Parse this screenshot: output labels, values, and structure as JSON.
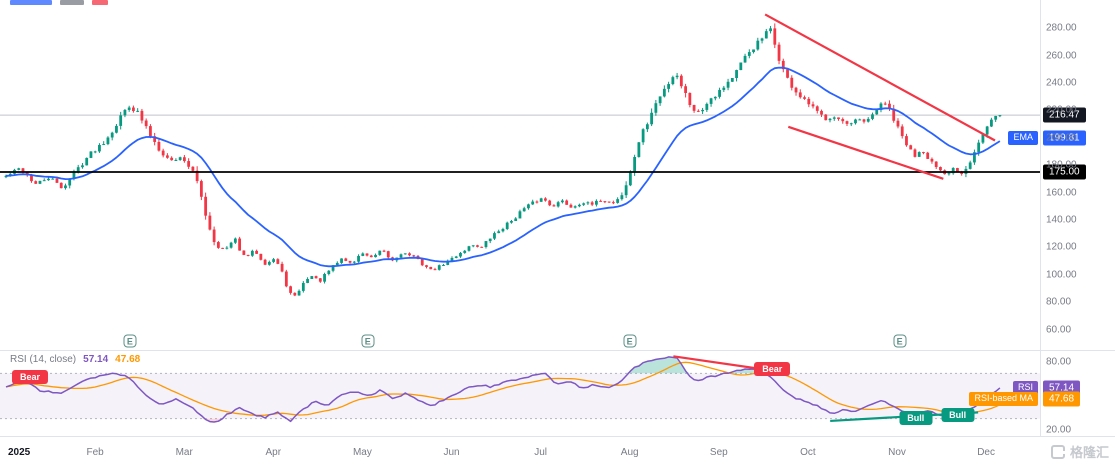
{
  "price_axis": {
    "ticks": [
      280,
      260,
      240,
      220,
      200,
      180,
      160,
      140,
      120,
      100,
      80,
      60
    ],
    "last_price_label": "216.47",
    "ema_tag": "EMA",
    "ema_label": "199.81",
    "hline_label": "175.00"
  },
  "rsi_axis": {
    "ticks": [
      80,
      20
    ],
    "rsi_tag": "RSI",
    "rsi_value_label": "57.14",
    "ma_tag": "RSI-based MA",
    "ma_value_label": "47.68"
  },
  "rsi_legend": {
    "title": "RSI (14, close)",
    "rsi_value": "57.14",
    "ma_value": "47.68"
  },
  "time_axis": {
    "year": "2025",
    "months": [
      "Feb",
      "Mar",
      "Apr",
      "May",
      "Jun",
      "Jul",
      "Aug",
      "Sep",
      "Oct",
      "Nov",
      "Dec"
    ]
  },
  "markers": {
    "earnings_label": "E"
  },
  "watermark": "格隆汇",
  "chart_data": {
    "type": "candlestick",
    "x_unit": "months_from_2025-01-01",
    "x_range": [
      0,
      11.155
    ],
    "colors": {
      "up": "#089981",
      "down": "#F23645",
      "ema": "#2962FF",
      "rsi": "#7E57C2",
      "rsi_ma": "#FF9800",
      "trend_bear": "#F23645",
      "trend_bull": "#089981",
      "hline": "#000000",
      "last_badge_bg": "#131722",
      "band_fill": "#7E57C2",
      "axis_text": "#787B86",
      "grid": "#E0E3EB"
    },
    "price_pane": {
      "ylim_approx": [
        52,
        300
      ],
      "last_close": 216.47,
      "ema_period": 21,
      "ema_last": 199.81,
      "hline": 175.0,
      "keyframes": [
        [
          0,
          172
        ],
        [
          0.16,
          178
        ],
        [
          0.33,
          166
        ],
        [
          0.49,
          171
        ],
        [
          0.63,
          163
        ],
        [
          0.77,
          175
        ],
        [
          0.94,
          188
        ],
        [
          1.11,
          198
        ],
        [
          1.26,
          212
        ],
        [
          1.37,
          224
        ],
        [
          1.48,
          218
        ],
        [
          1.59,
          205
        ],
        [
          1.71,
          193
        ],
        [
          1.84,
          183
        ],
        [
          1.98,
          186
        ],
        [
          2.09,
          176
        ],
        [
          2.18,
          160
        ],
        [
          2.27,
          138
        ],
        [
          2.35,
          122
        ],
        [
          2.46,
          118
        ],
        [
          2.57,
          126
        ],
        [
          2.68,
          112
        ],
        [
          2.79,
          118
        ],
        [
          2.91,
          108
        ],
        [
          3.02,
          112
        ],
        [
          3.13,
          96
        ],
        [
          3.22,
          82
        ],
        [
          3.3,
          90
        ],
        [
          3.41,
          100
        ],
        [
          3.52,
          95
        ],
        [
          3.64,
          104
        ],
        [
          3.77,
          112
        ],
        [
          3.88,
          108
        ],
        [
          4.0,
          116
        ],
        [
          4.11,
          112
        ],
        [
          4.22,
          118
        ],
        [
          4.33,
          110
        ],
        [
          4.44,
          116
        ],
        [
          4.56,
          114
        ],
        [
          4.67,
          108
        ],
        [
          4.78,
          103
        ],
        [
          4.89,
          107
        ],
        [
          5.01,
          112
        ],
        [
          5.12,
          117
        ],
        [
          5.23,
          122
        ],
        [
          5.34,
          120
        ],
        [
          5.45,
          128
        ],
        [
          5.57,
          134
        ],
        [
          5.68,
          140
        ],
        [
          5.79,
          147
        ],
        [
          5.9,
          152
        ],
        [
          6.02,
          156
        ],
        [
          6.13,
          150
        ],
        [
          6.24,
          154
        ],
        [
          6.35,
          149
        ],
        [
          6.46,
          153
        ],
        [
          6.58,
          151
        ],
        [
          6.69,
          155
        ],
        [
          6.8,
          152
        ],
        [
          6.91,
          158
        ],
        [
          7.0,
          172
        ],
        [
          7.09,
          196
        ],
        [
          7.18,
          208
        ],
        [
          7.27,
          222
        ],
        [
          7.36,
          232
        ],
        [
          7.45,
          242
        ],
        [
          7.52,
          248
        ],
        [
          7.61,
          234
        ],
        [
          7.7,
          222
        ],
        [
          7.79,
          218
        ],
        [
          7.88,
          228
        ],
        [
          7.97,
          232
        ],
        [
          8.06,
          238
        ],
        [
          8.15,
          244
        ],
        [
          8.24,
          252
        ],
        [
          8.33,
          262
        ],
        [
          8.42,
          268
        ],
        [
          8.51,
          274
        ],
        [
          8.57,
          280
        ],
        [
          8.66,
          262
        ],
        [
          8.75,
          244
        ],
        [
          8.84,
          236
        ],
        [
          8.93,
          228
        ],
        [
          9.02,
          224
        ],
        [
          9.11,
          218
        ],
        [
          9.2,
          214
        ],
        [
          9.29,
          216
        ],
        [
          9.38,
          212
        ],
        [
          9.47,
          208
        ],
        [
          9.56,
          214
        ],
        [
          9.65,
          210
        ],
        [
          9.74,
          218
        ],
        [
          9.83,
          226
        ],
        [
          9.92,
          220
        ],
        [
          10.01,
          206
        ],
        [
          10.1,
          196
        ],
        [
          10.19,
          186
        ],
        [
          10.28,
          192
        ],
        [
          10.37,
          184
        ],
        [
          10.46,
          176
        ],
        [
          10.55,
          172
        ],
        [
          10.64,
          178
        ],
        [
          10.73,
          174
        ],
        [
          10.82,
          184
        ],
        [
          10.91,
          196
        ],
        [
          11.0,
          206
        ],
        [
          11.08,
          214
        ],
        [
          11.155,
          216.47
        ]
      ],
      "trendlines": [
        {
          "from": [
            8.52,
            290
          ],
          "to": [
            11.1,
            198
          ]
        },
        {
          "from": [
            8.78,
            208
          ],
          "to": [
            10.52,
            170
          ]
        }
      ],
      "earnings_months": [
        1.39,
        4.06,
        7.0,
        10.03
      ]
    },
    "rsi_pane": {
      "period": 14,
      "last": 57.14,
      "ma_period": 14,
      "ma_last": 47.68,
      "overbought": 70,
      "oversold": 30,
      "keyframes": [
        [
          0,
          58
        ],
        [
          0.21,
          63
        ],
        [
          0.38,
          55
        ],
        [
          0.61,
          52
        ],
        [
          0.83,
          62
        ],
        [
          1.06,
          68
        ],
        [
          1.22,
          70
        ],
        [
          1.39,
          66
        ],
        [
          1.56,
          52
        ],
        [
          1.73,
          42
        ],
        [
          1.9,
          47
        ],
        [
          2.07,
          41
        ],
        [
          2.23,
          30
        ],
        [
          2.35,
          26
        ],
        [
          2.49,
          34
        ],
        [
          2.63,
          40
        ],
        [
          2.76,
          34
        ],
        [
          2.91,
          31
        ],
        [
          3.05,
          36
        ],
        [
          3.19,
          28
        ],
        [
          3.32,
          38
        ],
        [
          3.47,
          45
        ],
        [
          3.61,
          42
        ],
        [
          3.75,
          50
        ],
        [
          3.92,
          54
        ],
        [
          4.06,
          50
        ],
        [
          4.2,
          55
        ],
        [
          4.33,
          48
        ],
        [
          4.48,
          52
        ],
        [
          4.62,
          47
        ],
        [
          4.76,
          41
        ],
        [
          4.9,
          46
        ],
        [
          5.04,
          52
        ],
        [
          5.19,
          57
        ],
        [
          5.32,
          60
        ],
        [
          5.45,
          58
        ],
        [
          5.6,
          62
        ],
        [
          5.75,
          65
        ],
        [
          5.9,
          68
        ],
        [
          6.05,
          70
        ],
        [
          6.19,
          60
        ],
        [
          6.33,
          63
        ],
        [
          6.46,
          57
        ],
        [
          6.61,
          60
        ],
        [
          6.76,
          57
        ],
        [
          6.89,
          62
        ],
        [
          7.03,
          74
        ],
        [
          7.17,
          80
        ],
        [
          7.32,
          82
        ],
        [
          7.43,
          84
        ],
        [
          7.52,
          85
        ],
        [
          7.63,
          72
        ],
        [
          7.74,
          62
        ],
        [
          7.86,
          66
        ],
        [
          7.97,
          68
        ],
        [
          8.08,
          70
        ],
        [
          8.19,
          72
        ],
        [
          8.33,
          74
        ],
        [
          8.46,
          72
        ],
        [
          8.6,
          66
        ],
        [
          8.73,
          55
        ],
        [
          8.87,
          48
        ],
        [
          9.0,
          45
        ],
        [
          9.14,
          40
        ],
        [
          9.27,
          34
        ],
        [
          9.4,
          38
        ],
        [
          9.54,
          36
        ],
        [
          9.67,
          41
        ],
        [
          9.81,
          46
        ],
        [
          9.94,
          42
        ],
        [
          10.08,
          36
        ],
        [
          10.21,
          33
        ],
        [
          10.35,
          37
        ],
        [
          10.48,
          32
        ],
        [
          10.62,
          36
        ],
        [
          10.75,
          35
        ],
        [
          10.89,
          42
        ],
        [
          11.02,
          50
        ],
        [
          11.155,
          57.14
        ]
      ],
      "trendlines": [
        {
          "role": "bear",
          "from": [
            7.49,
            85
          ],
          "to": [
            8.55,
            73
          ]
        },
        {
          "role": "bull",
          "from": [
            9.25,
            28
          ],
          "to": [
            10.91,
            35.5
          ]
        }
      ],
      "labels": [
        {
          "text": "Bear",
          "m": 0.27,
          "r": 67
        },
        {
          "text": "Bear",
          "m": 8.6,
          "r": 73.5
        },
        {
          "text": "Bull",
          "m": 10.21,
          "r": 31
        },
        {
          "text": "Bull",
          "m": 10.68,
          "r": 33
        }
      ]
    }
  }
}
